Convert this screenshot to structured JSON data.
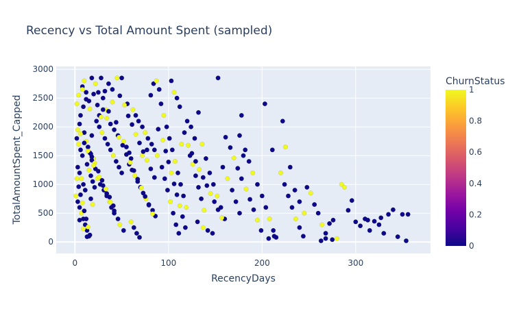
{
  "chart_data": {
    "type": "scatter",
    "title": "Recency vs Total Amount Spent (sampled)",
    "xlabel": "RecencyDays",
    "ylabel": "TotalAmountSpent_Capped",
    "xlim": [
      -20,
      380
    ],
    "ylim": [
      -200,
      3050
    ],
    "x_ticks": [
      0,
      100,
      200,
      300
    ],
    "y_ticks": [
      0,
      500,
      1000,
      1500,
      2000,
      2500,
      3000
    ],
    "grid": true,
    "colorbar": {
      "title": "ChurnStatus",
      "ticks": [
        0,
        0.2,
        0.4,
        0.6,
        0.8,
        1
      ],
      "colorscale": [
        "#0d0887",
        "#46039f",
        "#7201a8",
        "#9c179e",
        "#bd3786",
        "#d8576b",
        "#ed7953",
        "#fb9f3a",
        "#fdca26",
        "#f0f921"
      ]
    },
    "colors": {
      "plot_bg": "#e5ecf6",
      "grid": "#ffffff",
      "text": "#2a3f5f",
      "churn_0": "#0d0887",
      "churn_1": "#f0f921"
    },
    "points": [
      [
        2,
        2400,
        1
      ],
      [
        4,
        2550,
        1
      ],
      [
        6,
        2200,
        0
      ],
      [
        8,
        2700,
        0
      ],
      [
        10,
        2800,
        1
      ],
      [
        12,
        2600,
        0
      ],
      [
        5,
        2050,
        0
      ],
      [
        3,
        1950,
        1
      ],
      [
        9,
        2350,
        0
      ],
      [
        15,
        2450,
        0
      ],
      [
        18,
        2850,
        0
      ],
      [
        22,
        2750,
        1
      ],
      [
        25,
        2600,
        0
      ],
      [
        28,
        2850,
        0
      ],
      [
        30,
        2500,
        0
      ],
      [
        33,
        2300,
        1
      ],
      [
        36,
        2750,
        0
      ],
      [
        40,
        2650,
        0
      ],
      [
        45,
        2850,
        1
      ],
      [
        50,
        2850,
        0
      ],
      [
        2,
        1800,
        0
      ],
      [
        4,
        1700,
        1
      ],
      [
        6,
        1600,
        0
      ],
      [
        8,
        1500,
        0
      ],
      [
        10,
        1900,
        0
      ],
      [
        12,
        1750,
        1
      ],
      [
        14,
        1650,
        0
      ],
      [
        16,
        1550,
        0
      ],
      [
        18,
        1850,
        0
      ],
      [
        20,
        1450,
        1
      ],
      [
        3,
        1300,
        0
      ],
      [
        5,
        1200,
        0
      ],
      [
        7,
        1100,
        1
      ],
      [
        9,
        1000,
        0
      ],
      [
        11,
        900,
        0
      ],
      [
        13,
        1350,
        0
      ],
      [
        15,
        1250,
        1
      ],
      [
        17,
        1150,
        0
      ],
      [
        19,
        1050,
        0
      ],
      [
        21,
        950,
        0
      ],
      [
        1,
        800,
        1
      ],
      [
        3,
        700,
        0
      ],
      [
        5,
        600,
        0
      ],
      [
        7,
        500,
        1
      ],
      [
        9,
        400,
        0
      ],
      [
        11,
        300,
        0
      ],
      [
        13,
        200,
        0
      ],
      [
        15,
        100,
        0
      ],
      [
        17,
        750,
        0
      ],
      [
        19,
        650,
        1
      ],
      [
        23,
        2100,
        0
      ],
      [
        26,
        2000,
        0
      ],
      [
        29,
        1900,
        1
      ],
      [
        32,
        1800,
        0
      ],
      [
        35,
        1700,
        0
      ],
      [
        38,
        1600,
        0
      ],
      [
        41,
        1500,
        1
      ],
      [
        44,
        1400,
        0
      ],
      [
        47,
        1300,
        0
      ],
      [
        50,
        1200,
        0
      ],
      [
        24,
        1100,
        1
      ],
      [
        27,
        1000,
        0
      ],
      [
        31,
        900,
        0
      ],
      [
        34,
        800,
        0
      ],
      [
        37,
        700,
        1
      ],
      [
        39,
        600,
        0
      ],
      [
        42,
        500,
        0
      ],
      [
        46,
        400,
        0
      ],
      [
        48,
        300,
        1
      ],
      [
        52,
        200,
        0
      ],
      [
        26,
        2200,
        0
      ],
      [
        30,
        2300,
        0
      ],
      [
        34,
        2150,
        1
      ],
      [
        38,
        2050,
        0
      ],
      [
        42,
        1950,
        0
      ],
      [
        46,
        1850,
        0
      ],
      [
        52,
        1750,
        1
      ],
      [
        55,
        1650,
        0
      ],
      [
        58,
        1550,
        0
      ],
      [
        60,
        1450,
        0
      ],
      [
        56,
        2400,
        0
      ],
      [
        62,
        2300,
        1
      ],
      [
        65,
        2200,
        0
      ],
      [
        68,
        2100,
        0
      ],
      [
        72,
        2000,
        0
      ],
      [
        75,
        1900,
        1
      ],
      [
        78,
        1800,
        0
      ],
      [
        82,
        1700,
        0
      ],
      [
        85,
        1600,
        0
      ],
      [
        88,
        1500,
        1
      ],
      [
        58,
        1350,
        0
      ],
      [
        61,
        1250,
        0
      ],
      [
        64,
        1150,
        1
      ],
      [
        67,
        1050,
        0
      ],
      [
        70,
        950,
        0
      ],
      [
        73,
        850,
        0
      ],
      [
        76,
        750,
        1
      ],
      [
        79,
        650,
        0
      ],
      [
        83,
        550,
        0
      ],
      [
        86,
        450,
        0
      ],
      [
        60,
        350,
        1
      ],
      [
        63,
        250,
        0
      ],
      [
        66,
        150,
        0
      ],
      [
        69,
        80,
        0
      ],
      [
        72,
        1500,
        1
      ],
      [
        77,
        1600,
        0
      ],
      [
        81,
        2550,
        0
      ],
      [
        84,
        2750,
        0
      ],
      [
        87,
        2800,
        1
      ],
      [
        90,
        2650,
        0
      ],
      [
        92,
        2400,
        0
      ],
      [
        95,
        2200,
        1
      ],
      [
        98,
        2000,
        0
      ],
      [
        101,
        1800,
        0
      ],
      [
        104,
        1600,
        0
      ],
      [
        107,
        1400,
        1
      ],
      [
        110,
        1200,
        0
      ],
      [
        113,
        1000,
        0
      ],
      [
        116,
        800,
        0
      ],
      [
        119,
        600,
        1
      ],
      [
        93,
        1300,
        0
      ],
      [
        96,
        1100,
        0
      ],
      [
        99,
        900,
        0
      ],
      [
        102,
        700,
        1
      ],
      [
        105,
        500,
        0
      ],
      [
        108,
        300,
        0
      ],
      [
        111,
        150,
        0
      ],
      [
        114,
        1700,
        1
      ],
      [
        117,
        1900,
        0
      ],
      [
        120,
        2100,
        0
      ],
      [
        103,
        2800,
        0
      ],
      [
        106,
        2600,
        1
      ],
      [
        109,
        2500,
        0
      ],
      [
        112,
        2350,
        0
      ],
      [
        123,
        1500,
        0
      ],
      [
        126,
        1350,
        1
      ],
      [
        129,
        1150,
        0
      ],
      [
        132,
        950,
        0
      ],
      [
        135,
        750,
        0
      ],
      [
        138,
        550,
        1
      ],
      [
        124,
        2000,
        0
      ],
      [
        128,
        1800,
        0
      ],
      [
        132,
        2250,
        0
      ],
      [
        136,
        1700,
        1
      ],
      [
        140,
        1450,
        0
      ],
      [
        144,
        1200,
        0
      ],
      [
        148,
        1000,
        0
      ],
      [
        152,
        800,
        1
      ],
      [
        156,
        600,
        0
      ],
      [
        160,
        400,
        0
      ],
      [
        131,
        350,
        0
      ],
      [
        137,
        250,
        1
      ],
      [
        142,
        200,
        0
      ],
      [
        147,
        150,
        0
      ],
      [
        153,
        2850,
        0
      ],
      [
        158,
        1300,
        0
      ],
      [
        163,
        1100,
        1
      ],
      [
        168,
        900,
        0
      ],
      [
        172,
        700,
        0
      ],
      [
        176,
        500,
        0
      ],
      [
        178,
        2200,
        0
      ],
      [
        182,
        1600,
        0
      ],
      [
        186,
        1400,
        0
      ],
      [
        190,
        1200,
        1
      ],
      [
        195,
        1000,
        0
      ],
      [
        200,
        800,
        0
      ],
      [
        204,
        600,
        0
      ],
      [
        208,
        400,
        1
      ],
      [
        212,
        200,
        0
      ],
      [
        215,
        80,
        0
      ],
      [
        176,
        1850,
        0
      ],
      [
        180,
        1500,
        0
      ],
      [
        203,
        2400,
        0
      ],
      [
        211,
        1600,
        0
      ],
      [
        222,
        2100,
        0
      ],
      [
        225,
        1650,
        1
      ],
      [
        230,
        1300,
        0
      ],
      [
        235,
        900,
        0
      ],
      [
        240,
        700,
        0
      ],
      [
        245,
        500,
        1
      ],
      [
        220,
        1200,
        1
      ],
      [
        224,
        1000,
        0
      ],
      [
        228,
        800,
        0
      ],
      [
        232,
        600,
        0
      ],
      [
        236,
        400,
        1
      ],
      [
        240,
        250,
        0
      ],
      [
        244,
        100,
        0
      ],
      [
        248,
        950,
        0
      ],
      [
        252,
        850,
        1
      ],
      [
        256,
        650,
        0
      ],
      [
        260,
        500,
        0
      ],
      [
        264,
        300,
        1
      ],
      [
        268,
        150,
        0
      ],
      [
        272,
        320,
        0
      ],
      [
        276,
        380,
        0
      ],
      [
        280,
        60,
        1
      ],
      [
        285,
        1000,
        1
      ],
      [
        288,
        950,
        1
      ],
      [
        292,
        550,
        0
      ],
      [
        296,
        720,
        0
      ],
      [
        300,
        350,
        0
      ],
      [
        305,
        280,
        0
      ],
      [
        310,
        400,
        0
      ],
      [
        315,
        200,
        0
      ],
      [
        320,
        360,
        0
      ],
      [
        325,
        300,
        0
      ],
      [
        330,
        150,
        0
      ],
      [
        335,
        480,
        0
      ],
      [
        340,
        560,
        0
      ],
      [
        345,
        90,
        0
      ],
      [
        350,
        480,
        0
      ],
      [
        354,
        20,
        0
      ],
      [
        356,
        480,
        0
      ],
      [
        327,
        420,
        0
      ],
      [
        313,
        380,
        0
      ],
      [
        263,
        20,
        0
      ],
      [
        268,
        60,
        0
      ],
      [
        275,
        40,
        0
      ],
      [
        213,
        100,
        0
      ],
      [
        207,
        60,
        0
      ],
      [
        8,
        2650,
        1
      ],
      [
        12,
        2480,
        0
      ],
      [
        16,
        2310,
        1
      ],
      [
        20,
        2570,
        0
      ],
      [
        24,
        2380,
        0
      ],
      [
        28,
        2170,
        1
      ],
      [
        32,
        2620,
        0
      ],
      [
        36,
        2270,
        0
      ],
      [
        40,
        2430,
        1
      ],
      [
        44,
        2080,
        0
      ],
      [
        6,
        1880,
        1
      ],
      [
        10,
        1720,
        0
      ],
      [
        14,
        1580,
        1
      ],
      [
        18,
        1420,
        0
      ],
      [
        22,
        1270,
        0
      ],
      [
        26,
        1130,
        1
      ],
      [
        30,
        980,
        0
      ],
      [
        34,
        840,
        0
      ],
      [
        38,
        690,
        1
      ],
      [
        42,
        540,
        0
      ],
      [
        5,
        380,
        0
      ],
      [
        9,
        230,
        1
      ],
      [
        13,
        90,
        0
      ],
      [
        17,
        1530,
        0
      ],
      [
        21,
        1370,
        1
      ],
      [
        25,
        1230,
        0
      ],
      [
        29,
        1070,
        0
      ],
      [
        33,
        920,
        1
      ],
      [
        37,
        780,
        0
      ],
      [
        41,
        630,
        0
      ],
      [
        47,
        1820,
        1
      ],
      [
        51,
        1680,
        0
      ],
      [
        55,
        1520,
        0
      ],
      [
        59,
        1380,
        1
      ],
      [
        63,
        1240,
        0
      ],
      [
        67,
        1090,
        0
      ],
      [
        71,
        940,
        1
      ],
      [
        75,
        790,
        0
      ],
      [
        79,
        640,
        0
      ],
      [
        83,
        490,
        1
      ],
      [
        48,
        2540,
        0
      ],
      [
        53,
        2380,
        1
      ],
      [
        57,
        2190,
        0
      ],
      [
        61,
        2040,
        0
      ],
      [
        65,
        1870,
        1
      ],
      [
        69,
        1720,
        0
      ],
      [
        73,
        1570,
        0
      ],
      [
        77,
        1420,
        1
      ],
      [
        81,
        1270,
        0
      ],
      [
        85,
        1120,
        0
      ],
      [
        2,
        1100,
        1
      ],
      [
        4,
        960,
        0
      ],
      [
        6,
        820,
        0
      ],
      [
        8,
        680,
        1
      ],
      [
        10,
        540,
        0
      ],
      [
        12,
        400,
        0
      ],
      [
        14,
        260,
        1
      ],
      [
        16,
        120,
        0
      ],
      [
        18,
        1480,
        0
      ],
      [
        20,
        1330,
        1
      ],
      [
        89,
        1960,
        0
      ],
      [
        94,
        1770,
        1
      ],
      [
        97,
        1580,
        0
      ],
      [
        100,
        1390,
        0
      ],
      [
        103,
        1200,
        1
      ],
      [
        106,
        1010,
        0
      ],
      [
        109,
        820,
        0
      ],
      [
        112,
        630,
        1
      ],
      [
        115,
        440,
        0
      ],
      [
        118,
        250,
        0
      ],
      [
        121,
        1680,
        1
      ],
      [
        125,
        1540,
        0
      ],
      [
        129,
        1400,
        0
      ],
      [
        133,
        1260,
        1
      ],
      [
        137,
        1120,
        0
      ],
      [
        141,
        980,
        0
      ],
      [
        145,
        840,
        1
      ],
      [
        149,
        700,
        0
      ],
      [
        153,
        560,
        0
      ],
      [
        157,
        420,
        1
      ],
      [
        161,
        1820,
        0
      ],
      [
        166,
        1640,
        0
      ],
      [
        170,
        1460,
        1
      ],
      [
        174,
        1280,
        0
      ],
      [
        178,
        1100,
        0
      ],
      [
        183,
        920,
        1
      ],
      [
        187,
        740,
        0
      ],
      [
        191,
        560,
        0
      ],
      [
        195,
        380,
        1
      ],
      [
        199,
        200,
        0
      ]
    ]
  }
}
